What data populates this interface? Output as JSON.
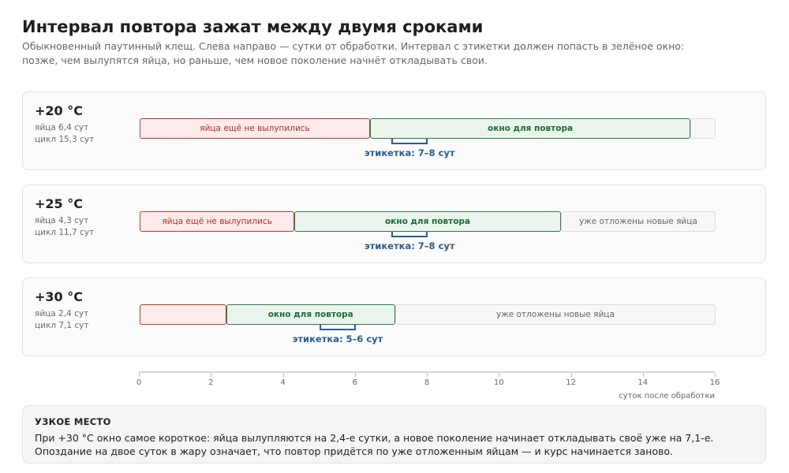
{
  "header": {
    "title": "Интервал повтора зажат между двумя сроками",
    "subtitle": "Обыкновенный паутинный клещ. Слева направо — сутки от обработки. Интервал с этикетки должен попасть в зелёное окно: позже, чем вылупятся яйца, но раньше, чем новое поколение начнёт откладывать свои."
  },
  "scale": {
    "min": 0,
    "max": 16
  },
  "rows": [
    {
      "temp": "+20 °C",
      "egg_text": "яйца 6,4 сут",
      "cycle_text": "цикл 15,3 сут",
      "egg_days": 6.4,
      "cycle_days": 15.3,
      "eggs_label": "яйца ещё не вылупились",
      "window_label": "окно для повтора",
      "laid_label": "",
      "label_from": 7,
      "label_to": 8,
      "label_text": "этикетка: 7–8 сут"
    },
    {
      "temp": "+25 °C",
      "egg_text": "яйца 4,3 сут",
      "cycle_text": "цикл 11,7 сут",
      "egg_days": 4.3,
      "cycle_days": 11.7,
      "eggs_label": "яйца ещё не вылупились",
      "window_label": "окно для повтора",
      "laid_label": "уже отложены новые яйца",
      "label_from": 7,
      "label_to": 8,
      "label_text": "этикетка: 7–8 сут"
    },
    {
      "temp": "+30 °C",
      "egg_text": "яйца 2,4 сут",
      "cycle_text": "цикл 7,1 сут",
      "egg_days": 2.4,
      "cycle_days": 7.1,
      "eggs_label": "",
      "window_label": "окно для повтора",
      "laid_label": "уже отложены новые яйца",
      "label_from": 5,
      "label_to": 6,
      "label_text": "этикетка: 5–6 сут"
    }
  ],
  "axis": {
    "ticks": [
      0,
      2,
      4,
      6,
      8,
      10,
      12,
      14,
      16
    ],
    "label": "суток после обработки"
  },
  "note": {
    "title": "УЗКОЕ МЕСТО",
    "text": "При +30 °C окно самое короткое: яйца вылупляются на 2,4-е сутки, а новое поколение начинает откладывать своё уже на 7,1-е. Опоздание на двое суток в жару означает, что повтор придётся по уже отложенным яйцам — и курс начинается заново."
  },
  "colors": {
    "eggs_fill": "#fdeaea",
    "eggs_border": "#c0392b",
    "window_fill": "#e9f5ec",
    "window_border": "#2e7d46",
    "laid_fill": "#f7f7f7",
    "label_accent": "#2a5d8f"
  }
}
